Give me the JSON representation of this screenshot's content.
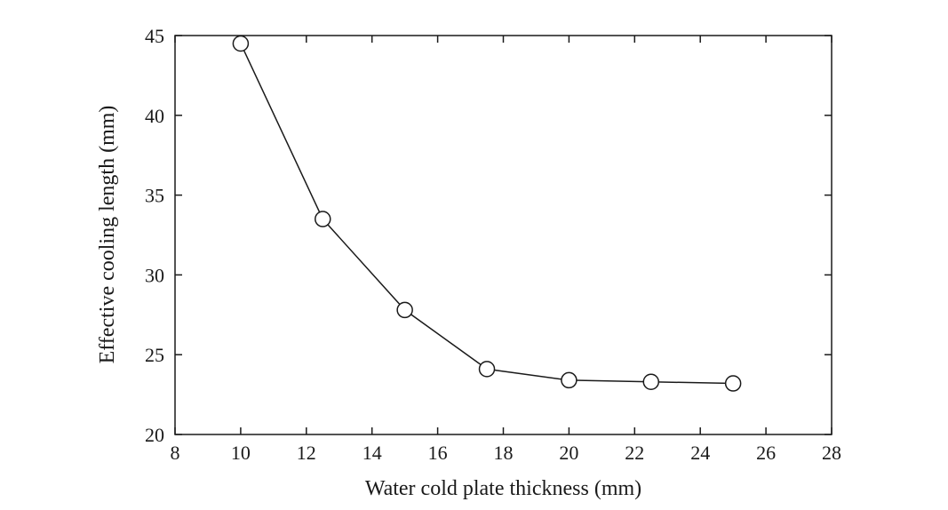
{
  "chart_data": {
    "type": "line",
    "title": "",
    "xlabel": "Water cold plate thickness (mm)",
    "ylabel": "Effective cooling length (mm)",
    "xlim": [
      8,
      28
    ],
    "ylim": [
      20,
      45
    ],
    "xticks": [
      8,
      10,
      12,
      14,
      16,
      18,
      20,
      22,
      24,
      26,
      28
    ],
    "yticks": [
      20,
      25,
      30,
      35,
      40,
      45
    ],
    "grid": false,
    "legend": "none",
    "marker": "open-circle",
    "line_color": "#1a1a1a",
    "series": [
      {
        "x": [
          10,
          12.5,
          15,
          17.5,
          20,
          22.5,
          25
        ],
        "y": [
          44.5,
          33.5,
          27.8,
          24.1,
          23.4,
          23.3,
          23.2
        ]
      }
    ]
  }
}
